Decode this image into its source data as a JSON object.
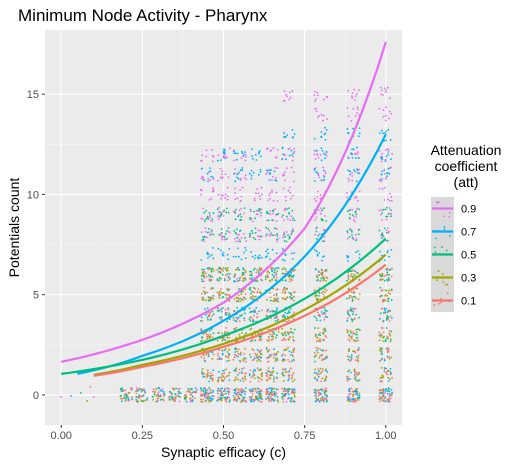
{
  "chart_data": {
    "type": "scatter",
    "title": "Minimum Node Activity - Pharynx",
    "xlabel": "Synaptic efficacy (c)",
    "ylabel": "Potentials count",
    "xlim": [
      -0.05,
      1.05
    ],
    "ylim": [
      -1.5,
      18.2
    ],
    "x_ticks": [
      0.0,
      0.25,
      0.5,
      0.75,
      1.0
    ],
    "x_tick_labels": [
      "0.00",
      "0.25",
      "0.50",
      "0.75",
      "1.00"
    ],
    "y_ticks": [
      0,
      5,
      10,
      15
    ],
    "y_tick_labels": [
      "0",
      "5",
      "10",
      "15"
    ],
    "grid": true,
    "legend": {
      "title": [
        "Attenuation",
        "coefficient",
        "(att)"
      ],
      "placement": "right"
    },
    "series": [
      {
        "name": "0.9",
        "color": "#E76BF3",
        "fit": [
          [
            0.0,
            1.65
          ],
          [
            0.25,
            2.75
          ],
          [
            0.5,
            4.6
          ],
          [
            0.75,
            8.3
          ],
          [
            1.0,
            17.6
          ]
        ],
        "jitter_x": [
          0.45,
          0.5,
          0.55,
          0.6,
          0.65,
          0.7,
          0.8,
          0.9,
          1.0
        ],
        "jitter_y": [
          11,
          10,
          9,
          8,
          12,
          15,
          14
        ]
      },
      {
        "name": "0.7",
        "color": "#00B0F6",
        "fit": [
          [
            0.05,
            1.05
          ],
          [
            0.25,
            1.95
          ],
          [
            0.5,
            3.7
          ],
          [
            0.75,
            6.9
          ],
          [
            1.0,
            13.0
          ]
        ],
        "jitter_x": [
          0.45,
          0.5,
          0.55,
          0.6,
          0.65,
          0.7,
          0.8,
          0.9,
          1.0
        ],
        "jitter_y": [
          0,
          1,
          2,
          4,
          6,
          7,
          11,
          12,
          13
        ]
      },
      {
        "name": "0.5",
        "color": "#00BF7D",
        "fit": [
          [
            0.0,
            1.05
          ],
          [
            0.25,
            1.75
          ],
          [
            0.5,
            2.95
          ],
          [
            0.75,
            4.8
          ],
          [
            1.0,
            7.8
          ]
        ],
        "jitter_x": [
          0.45,
          0.5,
          0.55,
          0.6,
          0.65,
          0.7,
          0.8,
          0.9,
          1.0
        ],
        "jitter_y": [
          3,
          4,
          5,
          6,
          8,
          9
        ]
      },
      {
        "name": "0.3",
        "color": "#A3A500",
        "fit": [
          [
            0.1,
            1.0
          ],
          [
            0.25,
            1.5
          ],
          [
            0.5,
            2.55
          ],
          [
            0.75,
            4.25
          ],
          [
            1.0,
            7.0
          ]
        ],
        "jitter_x": [
          0.45,
          0.5,
          0.55,
          0.6,
          0.65,
          0.7,
          0.8,
          0.9,
          1.0
        ],
        "jitter_y": [
          1,
          2,
          3,
          5,
          6
        ]
      },
      {
        "name": "0.1",
        "color": "#F8766D",
        "fit": [
          [
            0.1,
            0.95
          ],
          [
            0.25,
            1.4
          ],
          [
            0.5,
            2.4
          ],
          [
            0.75,
            3.95
          ],
          [
            1.0,
            6.5
          ]
        ],
        "jitter_x": [
          0.45,
          0.5,
          0.55,
          0.6,
          0.65,
          0.7,
          0.8,
          0.9,
          1.0
        ],
        "jitter_y": [
          0,
          1,
          2,
          3,
          4,
          5,
          6
        ]
      }
    ],
    "baseline_jitter_x": [
      0.2,
      0.25,
      0.3,
      0.35,
      0.4,
      0.45,
      0.5,
      0.55,
      0.6,
      0.65,
      0.7,
      0.8,
      0.9,
      1.0
    ],
    "baseline_y": 0,
    "sparse_points": [
      [
        0.0,
        -0.1
      ],
      [
        0.03,
        -0.05
      ],
      [
        0.06,
        0.1
      ],
      [
        0.08,
        -0.3
      ],
      [
        0.09,
        0.4
      ],
      [
        0.1,
        -0.1
      ]
    ]
  }
}
